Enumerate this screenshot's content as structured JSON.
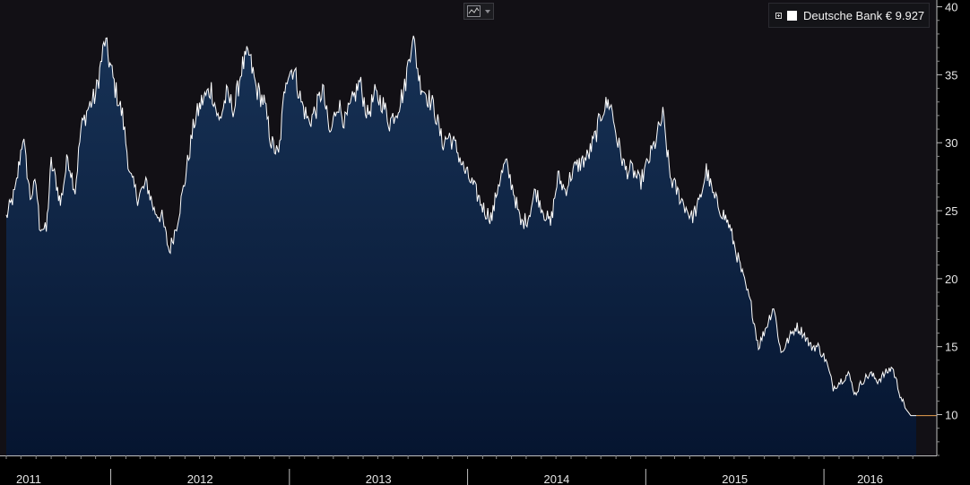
{
  "toolbar": {
    "chart_type_icon": "line-chart-icon",
    "dropdown_icon": "chevron-down-icon"
  },
  "legend": {
    "toggle_icon": "expand-toggle-icon",
    "label": "Deutsche Bank € 9.927",
    "swatch_color": "#ffffff"
  },
  "colors": {
    "background_top": "#121015",
    "area_top": "#173256",
    "area_bottom": "#061530",
    "line": "#ffffff",
    "last_price_marker": "#e8a050"
  },
  "chart_data": {
    "type": "area",
    "title": "",
    "xlabel": "",
    "ylabel": "",
    "ylim": [
      7,
      40.5
    ],
    "xlim": [
      "2011-06-01",
      "2016-07-08"
    ],
    "y_axis_position": "right",
    "y_ticks": [
      10,
      15,
      20,
      25,
      30,
      35,
      40
    ],
    "x_tick_labels": [
      "2011",
      "2012",
      "2013",
      "2014",
      "2015",
      "2016"
    ],
    "legend_position": "top-right",
    "grid": false,
    "last_value": 9.927,
    "series": [
      {
        "name": "Deutsche Bank",
        "x": [
          "2011-06-01",
          "2011-06-20",
          "2011-07-05",
          "2011-07-20",
          "2011-08-01",
          "2011-08-08",
          "2011-08-22",
          "2011-09-01",
          "2011-09-12",
          "2011-09-20",
          "2011-10-05",
          "2011-10-20",
          "2011-11-01",
          "2011-11-15",
          "2011-12-01",
          "2011-12-20",
          "2012-01-10",
          "2012-01-25",
          "2012-02-10",
          "2012-02-25",
          "2012-03-15",
          "2012-03-30",
          "2012-04-15",
          "2012-04-30",
          "2012-05-15",
          "2012-05-31",
          "2012-06-04",
          "2012-06-20",
          "2012-07-05",
          "2012-07-25",
          "2012-08-10",
          "2012-08-25",
          "2012-09-10",
          "2012-09-25",
          "2012-10-10",
          "2012-10-25",
          "2012-11-10",
          "2012-11-25",
          "2012-12-10",
          "2012-12-25",
          "2013-01-10",
          "2013-01-25",
          "2013-02-10",
          "2013-02-25",
          "2013-03-10",
          "2013-03-25",
          "2013-04-10",
          "2013-04-25",
          "2013-05-10",
          "2013-05-25",
          "2013-06-10",
          "2013-06-25",
          "2013-07-10",
          "2013-07-25",
          "2013-08-10",
          "2013-08-25",
          "2013-09-10",
          "2013-09-25",
          "2013-10-10",
          "2013-10-25",
          "2013-11-10",
          "2013-11-25",
          "2013-12-10",
          "2013-12-25",
          "2014-01-10",
          "2014-01-23",
          "2014-02-05",
          "2014-02-20",
          "2014-03-05",
          "2014-03-20",
          "2014-04-05",
          "2014-04-20",
          "2014-05-05",
          "2014-05-20",
          "2014-06-05",
          "2014-06-20",
          "2014-07-05",
          "2014-07-20",
          "2014-08-05",
          "2014-08-20",
          "2014-09-05",
          "2014-09-20",
          "2014-10-05",
          "2014-10-20",
          "2014-11-05",
          "2014-11-20",
          "2014-12-05",
          "2014-12-20",
          "2015-01-05",
          "2015-01-20",
          "2015-02-05",
          "2015-02-20",
          "2015-03-05",
          "2015-03-20",
          "2015-04-05",
          "2015-04-20",
          "2015-05-05",
          "2015-05-20",
          "2015-06-05",
          "2015-06-20",
          "2015-07-05",
          "2015-07-20",
          "2015-08-05",
          "2015-08-20",
          "2015-09-05",
          "2015-09-20",
          "2015-10-05",
          "2015-10-20",
          "2015-11-05",
          "2015-11-20",
          "2015-12-05",
          "2015-12-20",
          "2016-01-05",
          "2016-01-20",
          "2016-02-05",
          "2016-02-20",
          "2016-03-05",
          "2016-03-20",
          "2016-04-05",
          "2016-04-20",
          "2016-05-05",
          "2016-05-20",
          "2016-06-05",
          "2016-06-15",
          "2016-06-27",
          "2016-07-08"
        ],
        "values": [
          24.5,
          26.5,
          30.5,
          26.0,
          27.0,
          24.0,
          23.5,
          28.5,
          27.0,
          25.5,
          29.0,
          26.5,
          31.0,
          32.5,
          33.5,
          37.5,
          34.0,
          32.0,
          27.5,
          26.0,
          27.0,
          25.0,
          24.5,
          22.0,
          24.0,
          27.0,
          28.0,
          31.5,
          33.0,
          34.0,
          31.5,
          33.5,
          32.5,
          35.5,
          36.5,
          34.0,
          33.0,
          30.0,
          29.0,
          35.0,
          35.5,
          33.0,
          31.5,
          32.5,
          34.0,
          30.5,
          33.0,
          31.5,
          33.0,
          34.5,
          32.0,
          33.5,
          33.0,
          31.5,
          32.5,
          34.0,
          38.0,
          34.5,
          33.5,
          32.5,
          30.0,
          30.5,
          29.5,
          28.0,
          27.0,
          26.0,
          25.0,
          24.5,
          27.0,
          28.5,
          26.5,
          24.0,
          24.5,
          26.5,
          25.0,
          24.0,
          27.5,
          26.5,
          28.0,
          28.5,
          29.0,
          30.5,
          32.5,
          33.0,
          30.0,
          28.0,
          28.0,
          27.0,
          28.5,
          30.0,
          32.0,
          27.5,
          26.5,
          25.5,
          24.5,
          25.5,
          28.0,
          26.0,
          25.0,
          24.0,
          22.0,
          20.0,
          18.0,
          15.0,
          16.5,
          18.0,
          14.5,
          15.5,
          16.5,
          16.0,
          15.0,
          15.0,
          14.0,
          12.0,
          12.5,
          13.0,
          11.5,
          12.5,
          13.0,
          12.5,
          13.0,
          13.5,
          11.5,
          10.5,
          9.927,
          9.927
        ]
      }
    ]
  }
}
